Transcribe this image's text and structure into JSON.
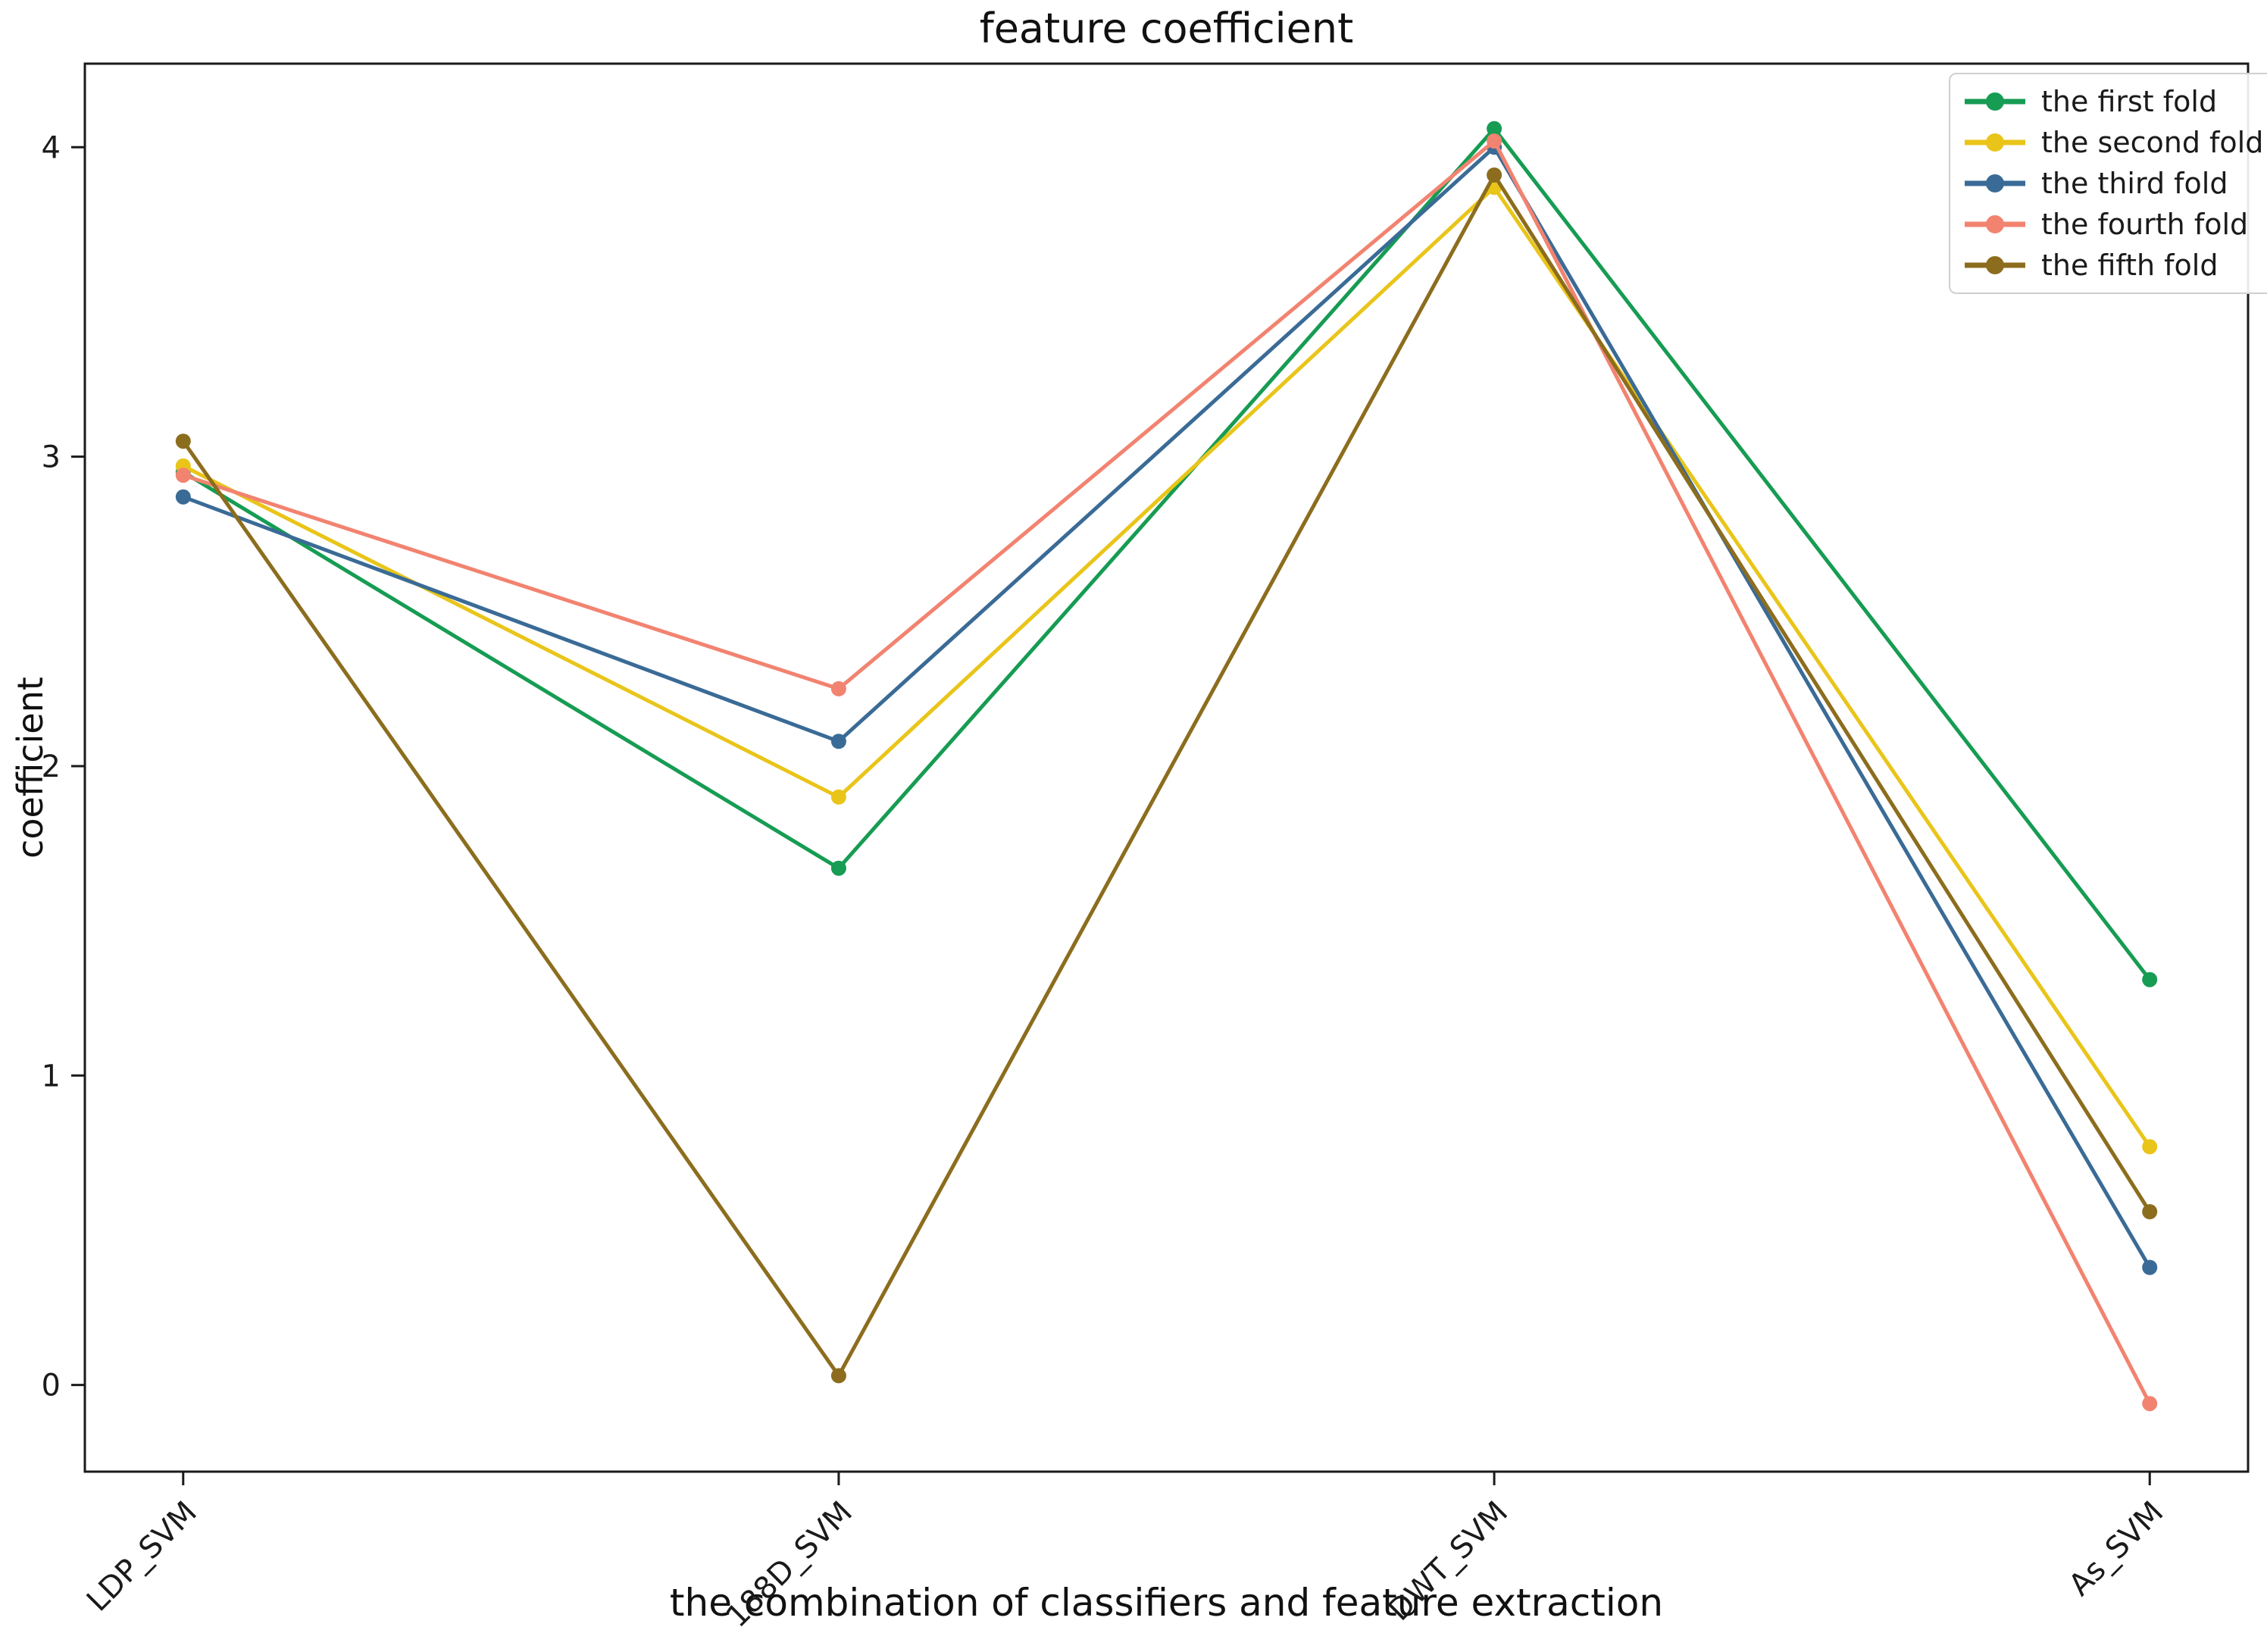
{
  "chart_data": {
    "type": "line",
    "title": "feature coefficient",
    "xlabel": "the combination of classifiers and feature extraction",
    "ylabel": "coefficient",
    "categories": [
      "LDP_SVM",
      "188D_SVM",
      "DWT_SVM",
      "As_SVM"
    ],
    "yticks": [
      0,
      1,
      2,
      3,
      4
    ],
    "ylim": [
      -0.28,
      4.27
    ],
    "xlim": [
      -0.15,
      3.15
    ],
    "grid": false,
    "legend_position": "upper right",
    "text_color": "#1a1a1a",
    "series": [
      {
        "name": "the first fold",
        "color": "#169c53",
        "values": [
          2.95,
          1.67,
          4.06,
          1.31
        ]
      },
      {
        "name": "the second fold",
        "color": "#e9c51a",
        "values": [
          2.97,
          1.9,
          3.87,
          0.77
        ]
      },
      {
        "name": "the third fold",
        "color": "#3a6b96",
        "values": [
          2.87,
          2.08,
          4.0,
          0.38
        ]
      },
      {
        "name": "the fourth fold",
        "color": "#f28370",
        "values": [
          2.94,
          2.25,
          4.02,
          -0.06
        ]
      },
      {
        "name": "the fifth fold",
        "color": "#8c6d1e",
        "values": [
          3.05,
          0.03,
          3.91,
          0.56
        ]
      }
    ]
  }
}
